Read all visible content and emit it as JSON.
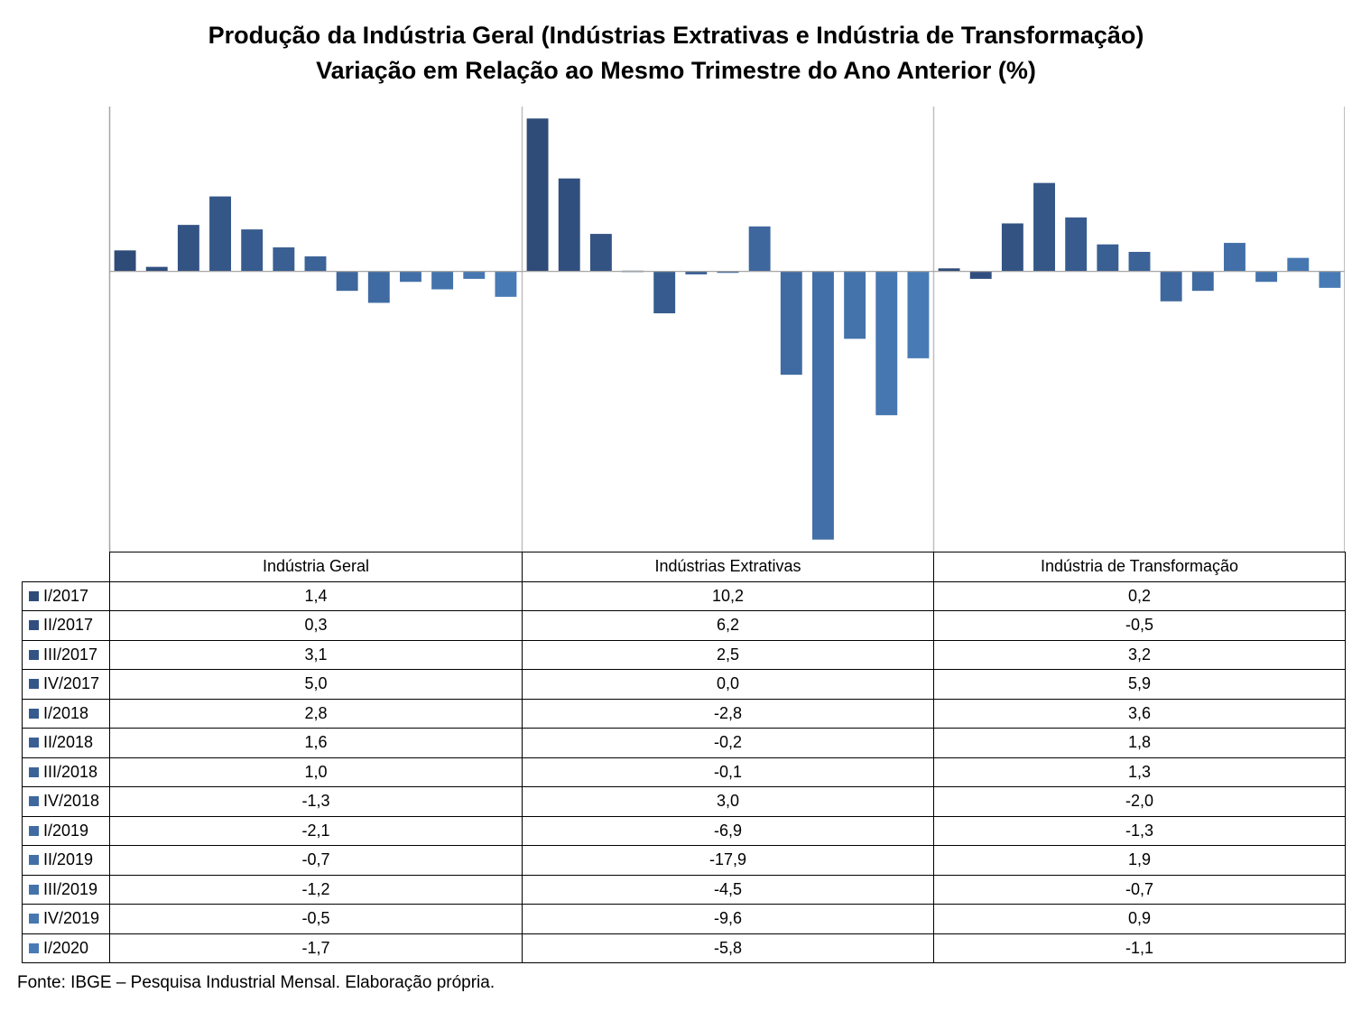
{
  "chart_data": {
    "type": "bar",
    "title": "Produção da Indústria Geral (Indústrias Extrativas e Indústria de Transformação)",
    "subtitle": "Variação em Relação ao Mesmo Trimestre do Ano Anterior (%)",
    "categories": [
      "Indústria Geral",
      "Indústrias Extrativas",
      "Indústria de Transformação"
    ],
    "series": [
      {
        "name": "I/2017",
        "values": [
          1.4,
          10.2,
          0.2
        ],
        "labels": [
          "1,4",
          "10,2",
          "0,2"
        ],
        "color": "#2f4b78"
      },
      {
        "name": "II/2017",
        "values": [
          0.3,
          6.2,
          -0.5
        ],
        "labels": [
          "0,3",
          "6,2",
          "-0,5"
        ],
        "color": "#314f7e"
      },
      {
        "name": "III/2017",
        "values": [
          3.1,
          2.5,
          3.2
        ],
        "labels": [
          "3,1",
          "2,5",
          "3,2"
        ],
        "color": "#335383"
      },
      {
        "name": "IV/2017",
        "values": [
          5.0,
          0.0,
          5.9
        ],
        "labels": [
          "5,0",
          "0,0",
          "5,9"
        ],
        "color": "#355788"
      },
      {
        "name": "I/2018",
        "values": [
          2.8,
          -2.8,
          3.6
        ],
        "labels": [
          "2,8",
          "-2,8",
          "3,6"
        ],
        "color": "#375b8e"
      },
      {
        "name": "II/2018",
        "values": [
          1.6,
          -0.2,
          1.8
        ],
        "labels": [
          "1,6",
          "-0,2",
          "1,8"
        ],
        "color": "#395f93"
      },
      {
        "name": "III/2018",
        "values": [
          1.0,
          -0.1,
          1.3
        ],
        "labels": [
          "1,0",
          "-0,1",
          "1,3"
        ],
        "color": "#3b6398"
      },
      {
        "name": "IV/2018",
        "values": [
          -1.3,
          3.0,
          -2.0
        ],
        "labels": [
          "-1,3",
          "3,0",
          "-2,0"
        ],
        "color": "#3e679d"
      },
      {
        "name": "I/2019",
        "values": [
          -2.1,
          -6.9,
          -1.3
        ],
        "labels": [
          "-2,1",
          "-6,9",
          "-1,3"
        ],
        "color": "#406ba2"
      },
      {
        "name": "II/2019",
        "values": [
          -0.7,
          -17.9,
          1.9
        ],
        "labels": [
          "-0,7",
          "-17,9",
          "1,9"
        ],
        "color": "#426fa7"
      },
      {
        "name": "III/2019",
        "values": [
          -1.2,
          -4.5,
          -0.7
        ],
        "labels": [
          "-1,2",
          "-4,5",
          "-0,7"
        ],
        "color": "#4473ac"
      },
      {
        "name": "IV/2019",
        "values": [
          -0.5,
          -9.6,
          0.9
        ],
        "labels": [
          "-0,5",
          "-9,6",
          "0,9"
        ],
        "color": "#4677b1"
      },
      {
        "name": "I/2020",
        "values": [
          -1.7,
          -5.8,
          -1.1
        ],
        "labels": [
          "-1,7",
          "-5,8",
          "-1,1"
        ],
        "color": "#487bb6"
      }
    ],
    "ylim": [
      -18.7,
      11.0
    ],
    "grid": false,
    "legend": "data table below chart",
    "source": "Fonte: IBGE – Pesquisa Industrial Mensal. Elaboração própria."
  }
}
